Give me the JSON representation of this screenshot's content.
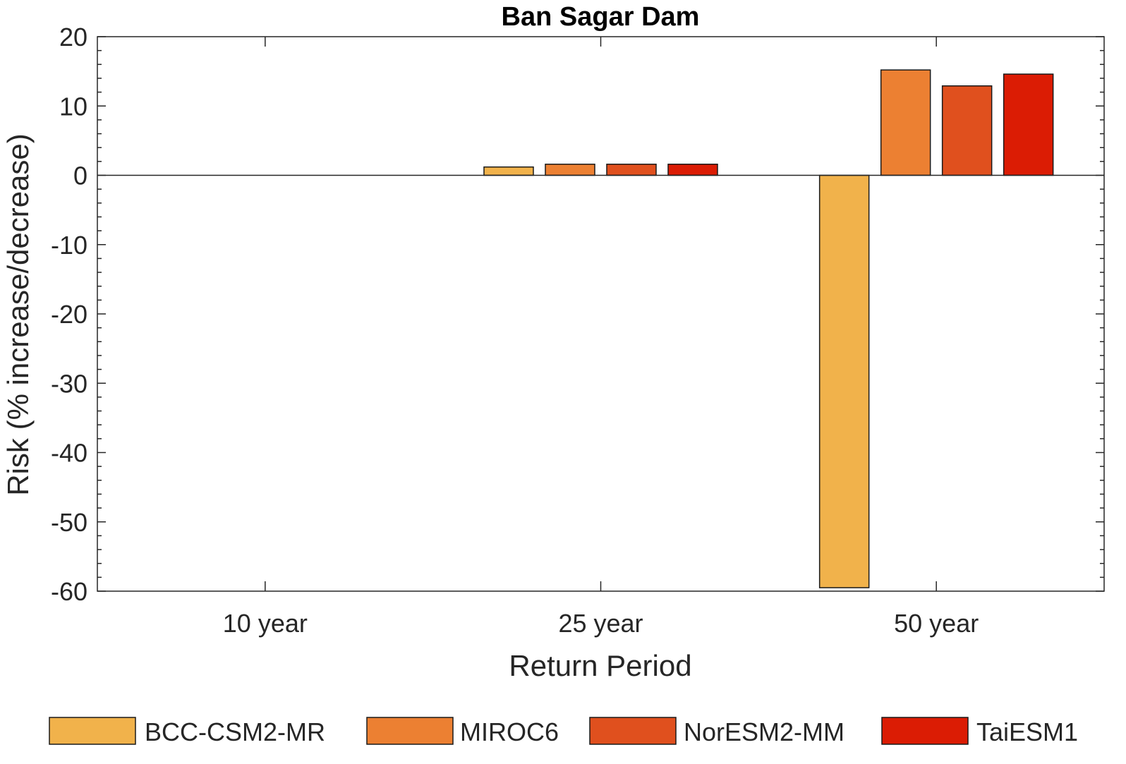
{
  "chart_data": {
    "type": "bar",
    "title": "Ban Sagar Dam",
    "xlabel": "Return Period",
    "ylabel": "Risk (% increase/decrease)",
    "categories": [
      "10 year",
      "25 year",
      "50 year"
    ],
    "series": [
      {
        "name": "BCC-CSM2-MR",
        "color": "#F1B24B",
        "values": [
          0,
          1.2,
          -59.5
        ]
      },
      {
        "name": "MIROC6",
        "color": "#EC8032",
        "values": [
          0,
          1.6,
          15.2
        ]
      },
      {
        "name": "NorESM2-MM",
        "color": "#E0501E",
        "values": [
          0,
          1.6,
          12.9
        ]
      },
      {
        "name": "TaiESM1",
        "color": "#DB1C04",
        "values": [
          0,
          1.6,
          14.6
        ]
      }
    ],
    "ylim": [
      -60,
      20
    ],
    "yticks": [
      "20",
      "10",
      "0",
      "-10",
      "-20",
      "-30",
      "-40",
      "-50",
      "-60"
    ],
    "ytick_values": [
      20,
      10,
      0,
      -10,
      -20,
      -30,
      -40,
      -50,
      -60
    ],
    "grid": false,
    "legend_position": "bottom"
  }
}
